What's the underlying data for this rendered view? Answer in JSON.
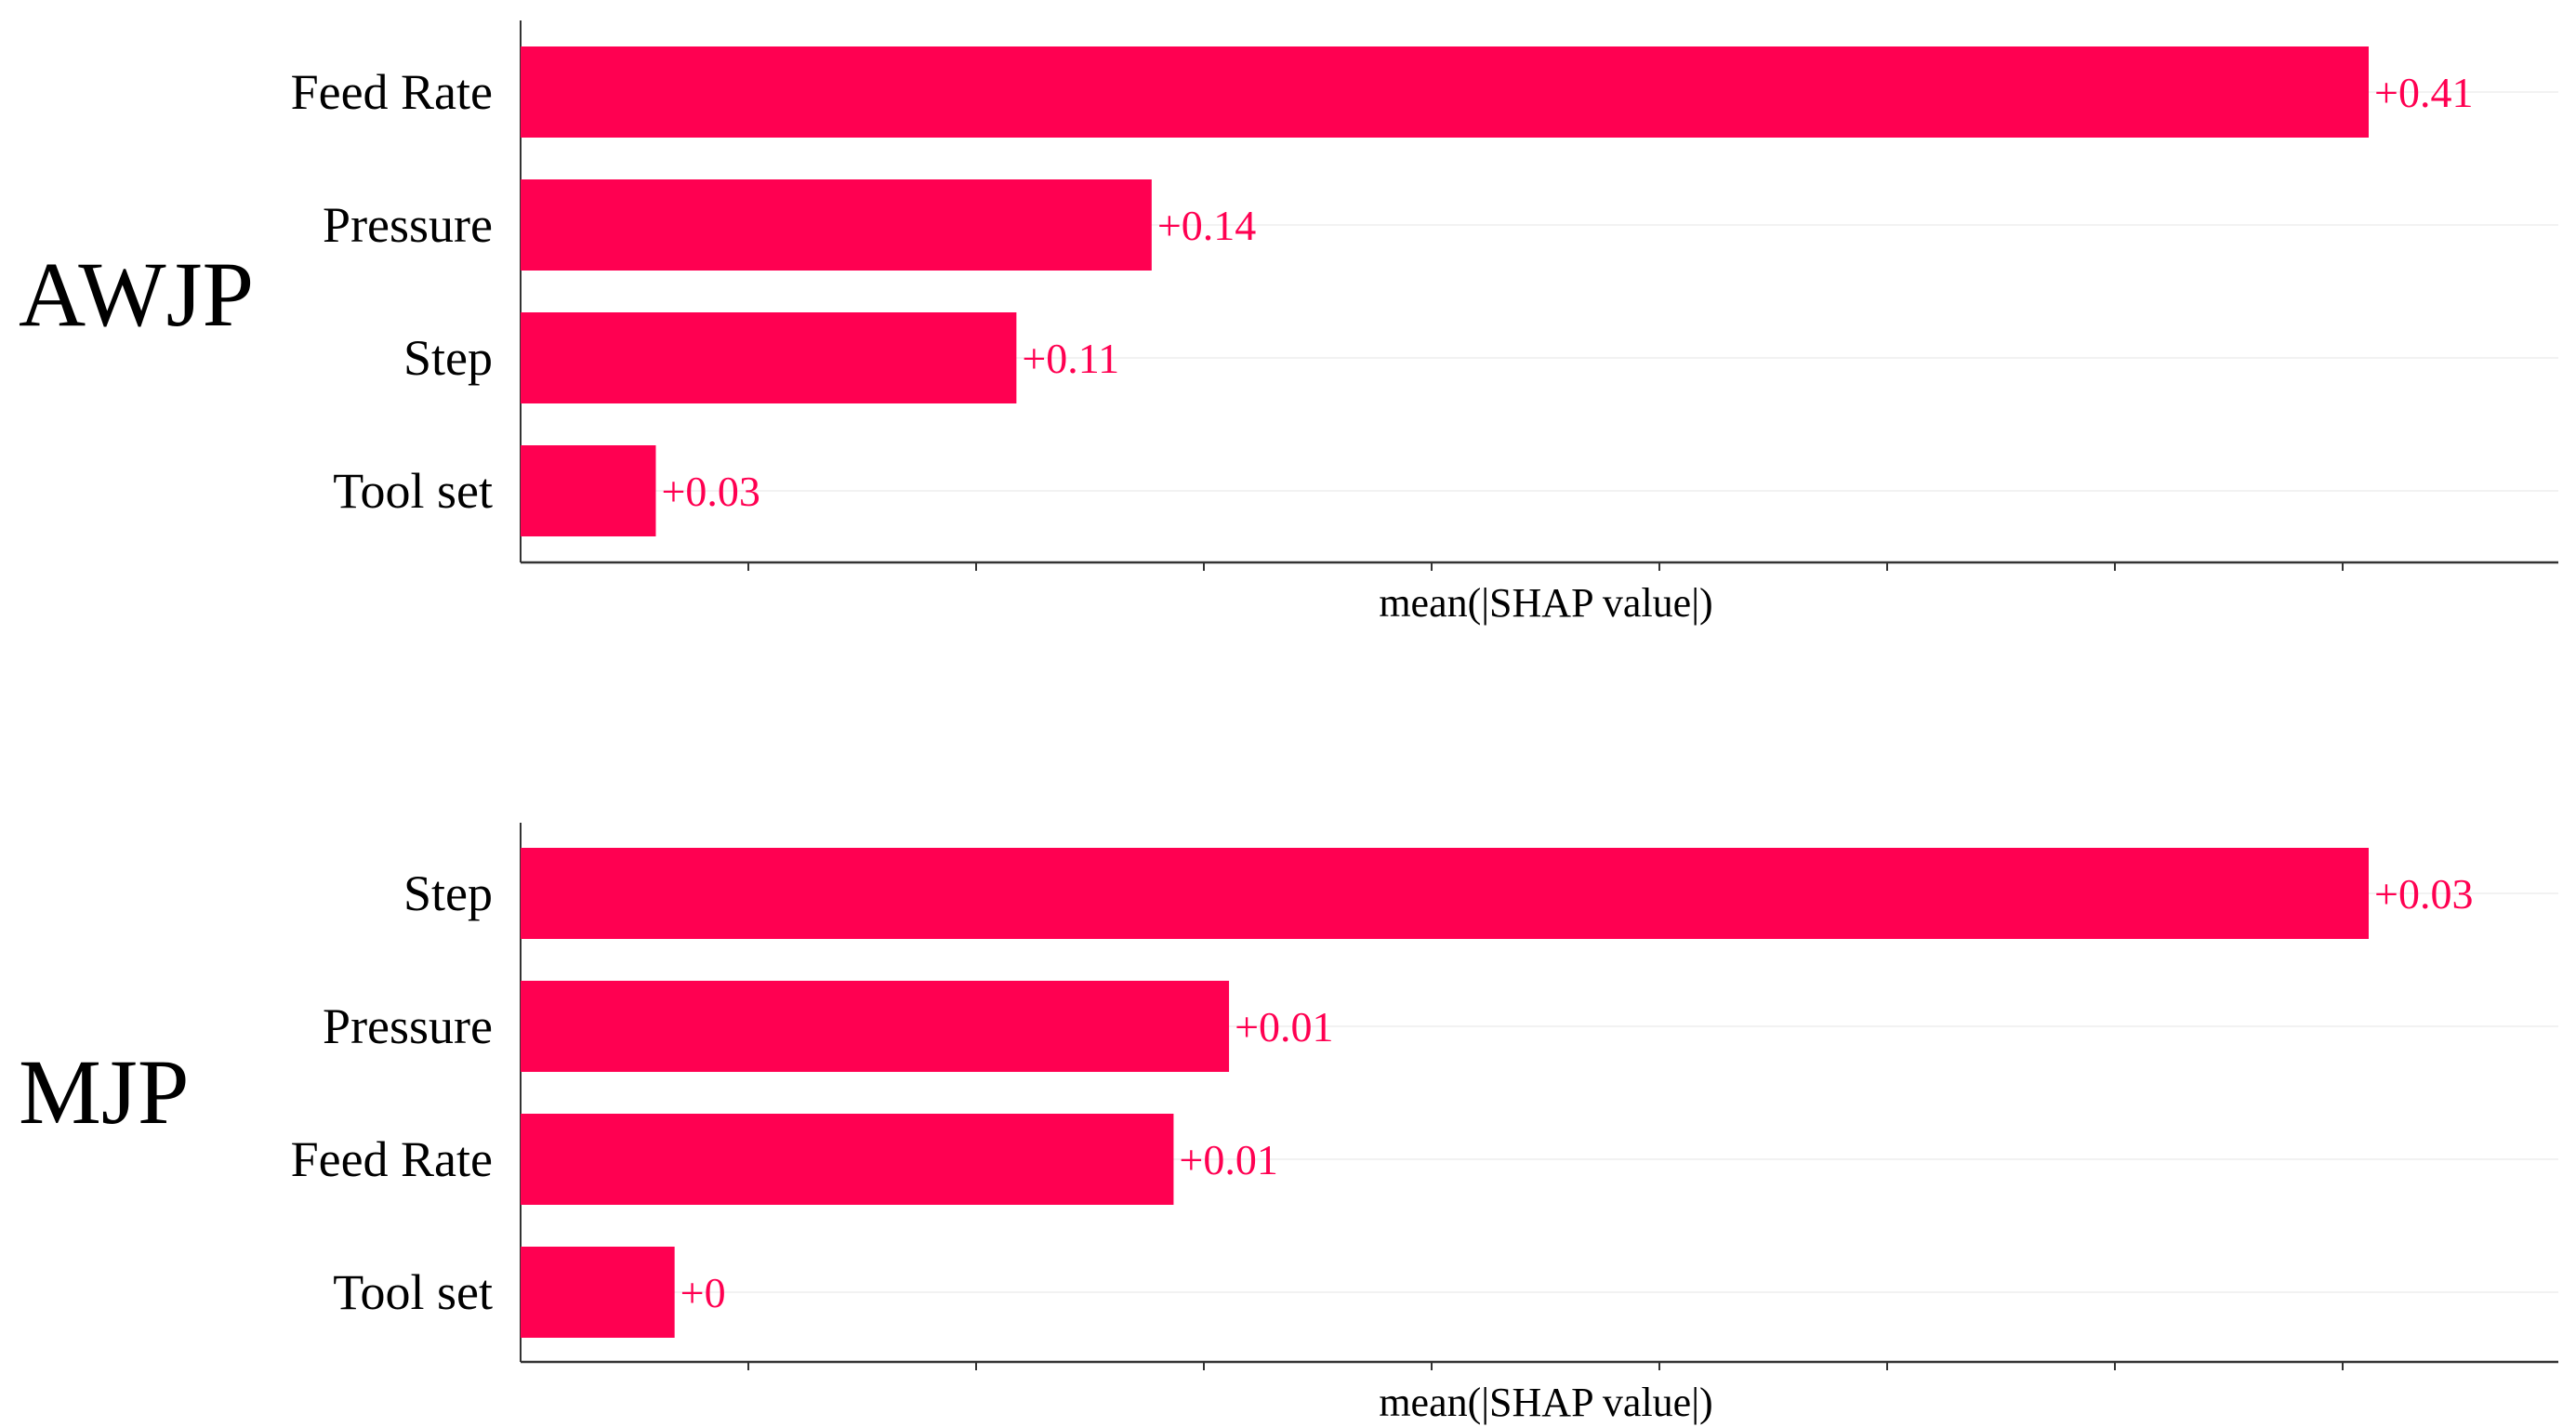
{
  "colors": {
    "bar": "#ff0051",
    "axis": "#333333",
    "gridline": "#f2f2f2",
    "tick": "#333333",
    "text": "#000000"
  },
  "chart_data": [
    {
      "type": "bar",
      "orientation": "horizontal",
      "panel_label": "AWJP",
      "categories": [
        "Feed Rate",
        "Pressure",
        "Step",
        "Tool set"
      ],
      "values": [
        0.41,
        0.14,
        0.11,
        0.03
      ],
      "value_labels": [
        "+0.41",
        "+0.14",
        "+0.11",
        "+0.03"
      ],
      "xlabel": "mean(|SHAP value|)",
      "ylabel": "",
      "tick_labels_shown": false,
      "grid": "horizontal faint"
    },
    {
      "type": "bar",
      "orientation": "horizontal",
      "panel_label": "MJP",
      "categories": [
        "Step",
        "Pressure",
        "Feed Rate",
        "Tool set"
      ],
      "values": [
        0.03,
        0.0115,
        0.0106,
        0.0025
      ],
      "value_labels": [
        "+0.03",
        "+0.01",
        "+0.01",
        "+0"
      ],
      "xlabel": "mean(|SHAP value|)",
      "ylabel": "",
      "tick_labels_shown": false,
      "grid": "horizontal faint"
    }
  ]
}
